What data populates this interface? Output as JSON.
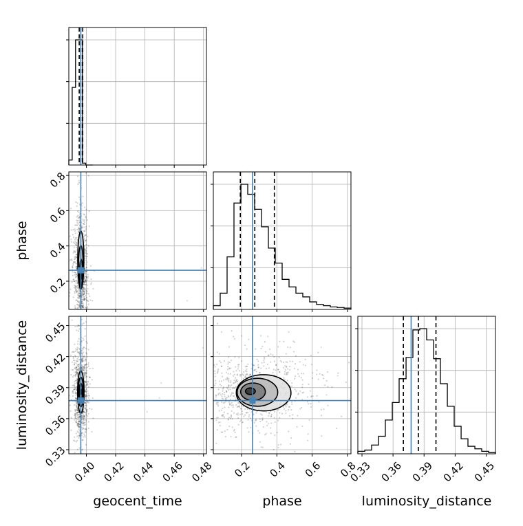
{
  "chart_data": {
    "type": "corner",
    "parameters": [
      "geocent_time",
      "phase",
      "luminosity_distance"
    ],
    "truths": {
      "geocent_time": 0.3962,
      "phase": 0.262,
      "luminosity_distance": 0.3775
    },
    "truth_color": "#4682b4",
    "axes": {
      "geocent_time": {
        "range": [
          0.388,
          0.482
        ],
        "ticks": [
          0.4,
          0.42,
          0.44,
          0.46,
          0.48
        ],
        "tick_labels": [
          "0.40",
          "0.42",
          "0.44",
          "0.46",
          "0.48"
        ]
      },
      "phase": {
        "range": [
          0.04,
          0.82
        ],
        "ticks": [
          0.2,
          0.4,
          0.6,
          0.8
        ],
        "tick_labels": [
          "0.2",
          "0.4",
          "0.6",
          "0.8"
        ]
      },
      "luminosity_distance": {
        "range": [
          0.326,
          0.459
        ],
        "ticks": [
          0.33,
          0.36,
          0.39,
          0.42,
          0.45
        ],
        "tick_labels": [
          "0.33",
          "0.36",
          "0.39",
          "0.42",
          "0.45"
        ]
      }
    },
    "grid": true,
    "histograms": {
      "geocent_time": {
        "bin_edges": [
          0.388,
          0.3903,
          0.3926,
          0.395,
          0.3973,
          0.3996,
          0.402,
          0.4043
        ],
        "counts": [
          0.04,
          0.62,
          1.0,
          1.0,
          0.015,
          0.0,
          0.0
        ],
        "quantiles": [
          0.3951,
          0.3962,
          0.3975
        ]
      },
      "phase": {
        "bin_edges": [
          0.04,
          0.079,
          0.118,
          0.157,
          0.196,
          0.235,
          0.274,
          0.313,
          0.352,
          0.391,
          0.43,
          0.469,
          0.508,
          0.547,
          0.586,
          0.625,
          0.664,
          0.703,
          0.742,
          0.781,
          0.82
        ],
        "counts": [
          0.03,
          0.13,
          0.42,
          0.85,
          1.0,
          0.92,
          0.8,
          0.66,
          0.49,
          0.37,
          0.24,
          0.18,
          0.13,
          0.1,
          0.06,
          0.04,
          0.03,
          0.02,
          0.015,
          0.01
        ],
        "quantiles": [
          0.193,
          0.275,
          0.386
        ]
      },
      "luminosity_distance": {
        "bin_edges": [
          0.326,
          0.3327,
          0.3393,
          0.346,
          0.3526,
          0.3593,
          0.3659,
          0.3726,
          0.3792,
          0.3859,
          0.3925,
          0.3992,
          0.4058,
          0.4125,
          0.4191,
          0.4258,
          0.4324,
          0.4391,
          0.4457,
          0.4524,
          0.459
        ],
        "counts": [
          0.02,
          0.03,
          0.07,
          0.14,
          0.27,
          0.41,
          0.6,
          0.77,
          0.99,
          1.0,
          0.91,
          0.76,
          0.56,
          0.38,
          0.22,
          0.12,
          0.06,
          0.04,
          0.02,
          0.01
        ],
        "quantiles": [
          0.37,
          0.3845,
          0.4015
        ]
      }
    },
    "joint": {
      "phase__geocent_time": {
        "center": [
          0.3962,
          0.25
        ],
        "contour_levels": [
          {
            "rx": 0.00045,
            "ry": 0.03,
            "dx": 0.0002,
            "dy": -0.01
          },
          {
            "rx": 0.001,
            "ry": 0.075,
            "dx": 0.0002,
            "dy": 0.0
          },
          {
            "rx": 0.0016,
            "ry": 0.118,
            "dx": 0.0,
            "dy": 0.035
          },
          {
            "rx": 0.0021,
            "ry": 0.165,
            "dx": 0.0,
            "dy": 0.07
          }
        ],
        "scatter_spread": [
          0.0022,
          0.16
        ]
      },
      "luminosity_distance__geocent_time": {
        "center": [
          0.3962,
          0.3858
        ],
        "contour_levels": [
          {
            "rx": 0.0005,
            "ry": 0.003,
            "dx": 0.0,
            "dy": 0.0
          },
          {
            "rx": 0.0011,
            "ry": 0.0085,
            "dx": 0.0,
            "dy": 0.0
          },
          {
            "rx": 0.0017,
            "ry": 0.0145,
            "dx": 0.0,
            "dy": 0.0
          },
          {
            "rx": 0.0022,
            "ry": 0.0205,
            "dx": 0.0,
            "dy": 0.0
          }
        ],
        "scatter_spread": [
          0.0022,
          0.021
        ]
      },
      "luminosity_distance__phase": {
        "center": [
          0.25,
          0.3865
        ],
        "contour_levels": [
          {
            "rx": 0.028,
            "ry": 0.0032,
            "dx": 0.0,
            "dy": 0.0
          },
          {
            "rx": 0.07,
            "ry": 0.0085,
            "dx": 0.015,
            "dy": -0.0005
          },
          {
            "rx": 0.115,
            "ry": 0.0135,
            "dx": 0.04,
            "dy": -0.001
          },
          {
            "rx": 0.155,
            "ry": 0.0175,
            "dx": 0.075,
            "dy": -0.0015
          }
        ],
        "scatter_spread": [
          0.17,
          0.019
        ]
      }
    }
  }
}
